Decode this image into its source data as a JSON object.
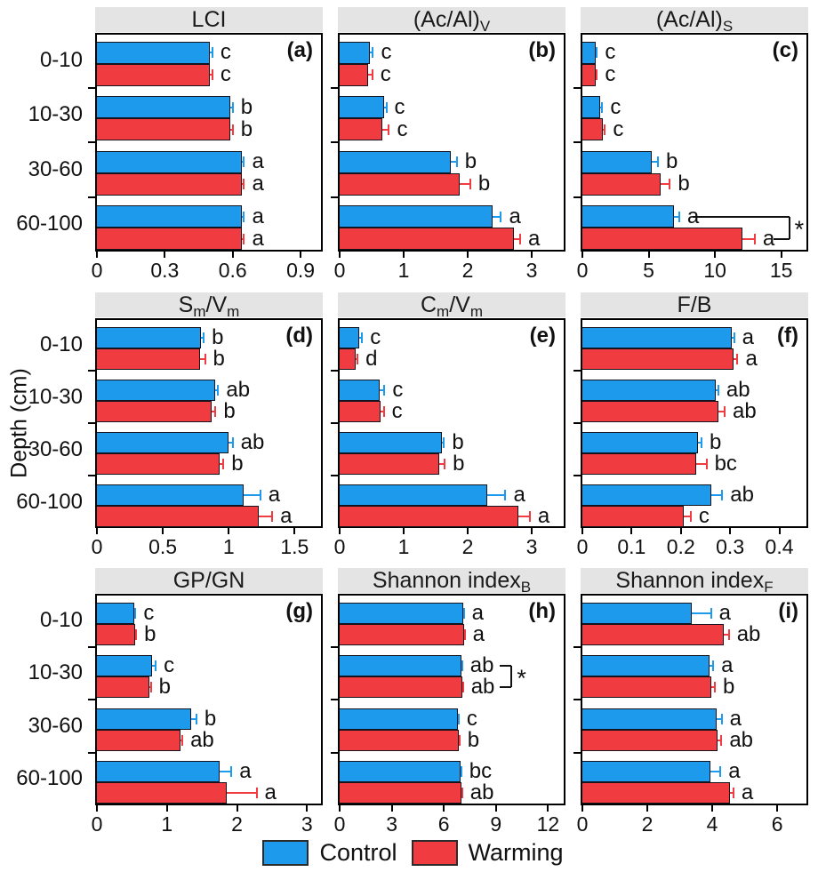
{
  "figure": {
    "ylabel": "Depth (cm)",
    "depth_labels": [
      "0-10",
      "10-30",
      "30-60",
      "60-100"
    ],
    "colors": {
      "control": "#1E9AEC",
      "warming": "#F03B40",
      "bar_outline": "#14141e",
      "header_bg": "#E4E4E4",
      "axis": "#000000"
    }
  },
  "legend": [
    {
      "label": "Control",
      "color": "#1E9AEC"
    },
    {
      "label": "Warming",
      "color": "#F03B40"
    }
  ],
  "chart_data": [
    {
      "id": "a",
      "panel_label": "(a)",
      "type": "bar",
      "title_parts": [
        {
          "t": "LCI"
        }
      ],
      "xmax": 0.99,
      "xticks": [
        0,
        0.3,
        0.6,
        0.9
      ],
      "xtick_labels": [
        "0",
        "0.3",
        "0.6",
        "0.9"
      ],
      "categories": [
        "0-10",
        "10-30",
        "30-60",
        "60-100"
      ],
      "series": [
        {
          "name": "Control",
          "values": [
            0.5,
            0.59,
            0.64,
            0.64
          ],
          "errors": [
            0.01,
            0.01,
            0.01,
            0.01
          ],
          "letters": [
            "c",
            "b",
            "a",
            "a"
          ]
        },
        {
          "name": "Warming",
          "values": [
            0.5,
            0.59,
            0.64,
            0.64
          ],
          "errors": [
            0.01,
            0.01,
            0.01,
            0.01
          ],
          "letters": [
            "c",
            "b",
            "a",
            "a"
          ]
        }
      ],
      "bracket": null
    },
    {
      "id": "b",
      "panel_label": "(b)",
      "type": "bar",
      "title_parts": [
        {
          "t": "(Ac/Al)"
        },
        {
          "t": "V",
          "sub": true
        }
      ],
      "xmax": 3.5,
      "xticks": [
        0,
        1,
        2,
        3
      ],
      "xtick_labels": [
        "0",
        "1",
        "2",
        "3"
      ],
      "categories": [
        "0-10",
        "10-30",
        "30-60",
        "60-100"
      ],
      "series": [
        {
          "name": "Control",
          "values": [
            0.47,
            0.69,
            1.74,
            2.39
          ],
          "errors": [
            0.05,
            0.04,
            0.09,
            0.13
          ],
          "letters": [
            "c",
            "c",
            "b",
            "a"
          ]
        },
        {
          "name": "Warming",
          "values": [
            0.45,
            0.67,
            1.88,
            2.72
          ],
          "errors": [
            0.06,
            0.1,
            0.16,
            0.1
          ],
          "letters": [
            "c",
            "c",
            "b",
            "a"
          ]
        }
      ],
      "bracket": null
    },
    {
      "id": "c",
      "panel_label": "(c)",
      "type": "bar",
      "title_parts": [
        {
          "t": "(Ac/Al)"
        },
        {
          "t": "S",
          "sub": true
        }
      ],
      "xmax": 16.9,
      "xticks": [
        0,
        5,
        10,
        15
      ],
      "xtick_labels": [
        "0",
        "5",
        "10",
        "15"
      ],
      "categories": [
        "0-10",
        "10-30",
        "30-60",
        "60-100"
      ],
      "series": [
        {
          "name": "Control",
          "values": [
            1.0,
            1.35,
            5.2,
            6.9
          ],
          "errors": [
            0.1,
            0.15,
            0.5,
            0.4
          ],
          "letters": [
            "c",
            "c",
            "b",
            "a"
          ]
        },
        {
          "name": "Warming",
          "values": [
            1.0,
            1.55,
            5.9,
            12.1
          ],
          "errors": [
            0.1,
            0.15,
            0.7,
            0.9
          ],
          "letters": [
            "c",
            "c",
            "b",
            "a"
          ]
        }
      ],
      "bracket": {
        "group": 3,
        "top_start": 8.3,
        "bottom_start": 14.4,
        "x": 15.6,
        "symbol": "*"
      }
    },
    {
      "id": "d",
      "panel_label": "(d)",
      "type": "bar",
      "title_parts": [
        {
          "t": "S"
        },
        {
          "t": "m",
          "sub": true
        },
        {
          "t": "/V"
        },
        {
          "t": "m",
          "sub": true
        }
      ],
      "xmax": 1.7,
      "xticks": [
        0,
        0.5,
        1,
        1.5
      ],
      "xtick_labels": [
        "0",
        "0.5",
        "1",
        "1.5"
      ],
      "categories": [
        "0-10",
        "10-30",
        "30-60",
        "60-100"
      ],
      "series": [
        {
          "name": "Control",
          "values": [
            0.79,
            0.9,
            1.0,
            1.11
          ],
          "errors": [
            0.02,
            0.02,
            0.03,
            0.13
          ],
          "letters": [
            "b",
            "ab",
            "ab",
            "a"
          ]
        },
        {
          "name": "Warming",
          "values": [
            0.78,
            0.87,
            0.93,
            1.23
          ],
          "errors": [
            0.04,
            0.03,
            0.03,
            0.1
          ],
          "letters": [
            "b",
            "b",
            "b",
            "a"
          ]
        }
      ],
      "bracket": null
    },
    {
      "id": "e",
      "panel_label": "(e)",
      "type": "bar",
      "title_parts": [
        {
          "t": "C"
        },
        {
          "t": "m",
          "sub": true
        },
        {
          "t": "/V"
        },
        {
          "t": "m",
          "sub": true
        }
      ],
      "xmax": 3.5,
      "xticks": [
        0,
        1,
        2,
        3
      ],
      "xtick_labels": [
        "0",
        "1",
        "2",
        "3"
      ],
      "categories": [
        "0-10",
        "10-30",
        "30-60",
        "60-100"
      ],
      "series": [
        {
          "name": "Control",
          "values": [
            0.3,
            0.62,
            1.6,
            2.31
          ],
          "errors": [
            0.05,
            0.08,
            0.03,
            0.28
          ],
          "letters": [
            "c",
            "c",
            "b",
            "a"
          ]
        },
        {
          "name": "Warming",
          "values": [
            0.25,
            0.64,
            1.56,
            2.79
          ],
          "errors": [
            0.03,
            0.05,
            0.08,
            0.18
          ],
          "letters": [
            "d",
            "c",
            "b",
            "a"
          ]
        }
      ],
      "bracket": null
    },
    {
      "id": "f",
      "panel_label": "(f)",
      "type": "bar",
      "title_parts": [
        {
          "t": "F/B"
        }
      ],
      "xmax": 0.455,
      "xticks": [
        0,
        0.1,
        0.2,
        0.3,
        0.4
      ],
      "xtick_labels": [
        "0",
        "0.1",
        "0.2",
        "0.3",
        "0.4"
      ],
      "categories": [
        "0-10",
        "10-30",
        "30-60",
        "60-100"
      ],
      "series": [
        {
          "name": "Control",
          "values": [
            0.304,
            0.271,
            0.234,
            0.262
          ],
          "errors": [
            0.004,
            0.005,
            0.008,
            0.022
          ],
          "letters": [
            "a",
            "ab",
            "b",
            "ab"
          ]
        },
        {
          "name": "Warming",
          "values": [
            0.307,
            0.277,
            0.232,
            0.205
          ],
          "errors": [
            0.008,
            0.012,
            0.02,
            0.015
          ],
          "letters": [
            "a",
            "ab",
            "bc",
            "c"
          ]
        }
      ],
      "bracket": null
    },
    {
      "id": "g",
      "panel_label": "(g)",
      "type": "bar",
      "title_parts": [
        {
          "t": "GP/GN"
        }
      ],
      "xmax": 3.2,
      "xticks": [
        0,
        1,
        2,
        3
      ],
      "xtick_labels": [
        "0",
        "1",
        "2",
        "3"
      ],
      "categories": [
        "0-10",
        "10-30",
        "30-60",
        "60-100"
      ],
      "series": [
        {
          "name": "Control",
          "values": [
            0.53,
            0.79,
            1.34,
            1.75
          ],
          "errors": [
            0.02,
            0.05,
            0.08,
            0.17
          ],
          "letters": [
            "c",
            "c",
            "b",
            "a"
          ]
        },
        {
          "name": "Warming",
          "values": [
            0.55,
            0.75,
            1.19,
            1.86
          ],
          "errors": [
            0.01,
            0.02,
            0.03,
            0.42
          ],
          "letters": [
            "b",
            "b",
            "ab",
            "a"
          ]
        }
      ],
      "bracket": null
    },
    {
      "id": "h",
      "panel_label": "(h)",
      "type": "bar",
      "title_parts": [
        {
          "t": "Shannon index"
        },
        {
          "t": "B",
          "sub": true
        }
      ],
      "xmax": 12.9,
      "xticks": [
        0,
        3,
        6,
        9,
        12
      ],
      "xtick_labels": [
        "0",
        "3",
        "6",
        "9",
        "12"
      ],
      "categories": [
        "0-10",
        "10-30",
        "30-60",
        "60-100"
      ],
      "series": [
        {
          "name": "Control",
          "values": [
            7.1,
            7.0,
            6.8,
            6.95
          ],
          "errors": [
            0.05,
            0.05,
            0.05,
            0.05
          ],
          "letters": [
            "a",
            "ab",
            "c",
            "bc"
          ]
        },
        {
          "name": "Warming",
          "values": [
            7.15,
            7.05,
            6.85,
            7.0
          ],
          "errors": [
            0.05,
            0.05,
            0.05,
            0.05
          ],
          "letters": [
            "a",
            "ab",
            "b",
            "ab"
          ]
        }
      ],
      "bracket": {
        "group": 1,
        "top_start": 9.2,
        "bottom_start": 9.2,
        "x": 9.9,
        "symbol": "*"
      }
    },
    {
      "id": "i",
      "panel_label": "(i)",
      "type": "bar",
      "title_parts": [
        {
          "t": "Shannon index"
        },
        {
          "t": "F",
          "sub": true
        }
      ],
      "xmax": 6.9,
      "xticks": [
        0,
        2,
        4,
        6
      ],
      "xtick_labels": [
        "0",
        "2",
        "4",
        "6"
      ],
      "categories": [
        "0-10",
        "10-30",
        "30-60",
        "60-100"
      ],
      "series": [
        {
          "name": "Control",
          "values": [
            3.36,
            3.91,
            4.14,
            3.95
          ],
          "errors": [
            0.6,
            0.12,
            0.15,
            0.3
          ],
          "letters": [
            "a",
            "a",
            "a",
            "a"
          ]
        },
        {
          "name": "Warming",
          "values": [
            4.36,
            3.98,
            4.16,
            4.55
          ],
          "errors": [
            0.15,
            0.1,
            0.12,
            0.1
          ],
          "letters": [
            "ab",
            "b",
            "ab",
            "a"
          ]
        }
      ],
      "bracket": null
    }
  ]
}
